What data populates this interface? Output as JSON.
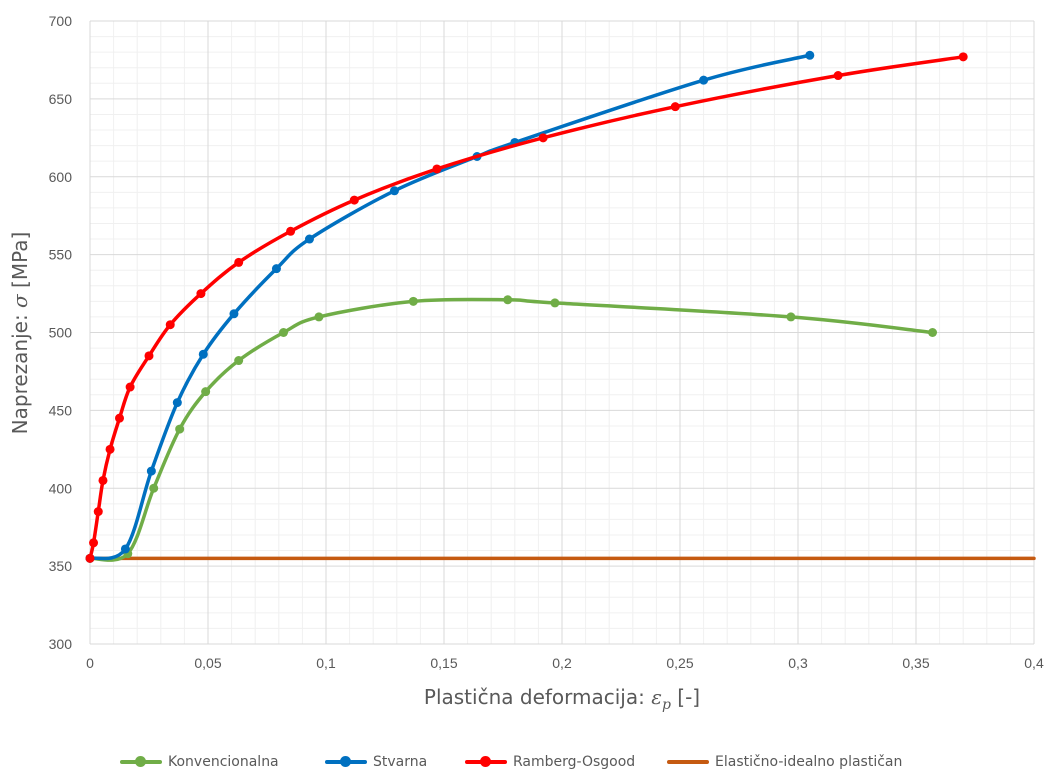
{
  "chart_data": {
    "type": "line",
    "title": "",
    "xlabel_prefix": "Plastična deformacija: ",
    "xlabel_symbol": "ε",
    "xlabel_sub": "p",
    "xlabel_suffix": " [-]",
    "ylabel_prefix": "Naprezanje: ",
    "ylabel_symbol": "σ",
    "ylabel_suffix": " [MPa]",
    "xlim": [
      0,
      0.4
    ],
    "ylim": [
      300,
      700
    ],
    "x_ticks": [
      {
        "v": 0,
        "label": "0"
      },
      {
        "v": 0.05,
        "label": "0,05"
      },
      {
        "v": 0.1,
        "label": "0,1"
      },
      {
        "v": 0.15,
        "label": "0,15"
      },
      {
        "v": 0.2,
        "label": "0,2"
      },
      {
        "v": 0.25,
        "label": "0,25"
      },
      {
        "v": 0.3,
        "label": "0,3"
      },
      {
        "v": 0.35,
        "label": "0,35"
      },
      {
        "v": 0.4,
        "label": "0,4"
      }
    ],
    "y_ticks": [
      {
        "v": 300,
        "label": "300"
      },
      {
        "v": 350,
        "label": "350"
      },
      {
        "v": 400,
        "label": "400"
      },
      {
        "v": 450,
        "label": "450"
      },
      {
        "v": 500,
        "label": "500"
      },
      {
        "v": 550,
        "label": "550"
      },
      {
        "v": 600,
        "label": "600"
      },
      {
        "v": 650,
        "label": "650"
      },
      {
        "v": 700,
        "label": "700"
      }
    ],
    "grid": true,
    "minor_grid": true,
    "legend_position": "bottom",
    "series": [
      {
        "name": "Konvencionalna",
        "color": "#70ad47",
        "markers": true,
        "points": [
          [
            0,
            355
          ],
          [
            0.016,
            358
          ],
          [
            0.027,
            400
          ],
          [
            0.038,
            438
          ],
          [
            0.049,
            462
          ],
          [
            0.063,
            482
          ],
          [
            0.082,
            500
          ],
          [
            0.097,
            510
          ],
          [
            0.137,
            520
          ],
          [
            0.177,
            521
          ],
          [
            0.197,
            519
          ],
          [
            0.297,
            510
          ],
          [
            0.357,
            500
          ]
        ]
      },
      {
        "name": "Stvarna",
        "color": "#0070c0",
        "markers": true,
        "points": [
          [
            0,
            355
          ],
          [
            0.015,
            361
          ],
          [
            0.026,
            411
          ],
          [
            0.037,
            455
          ],
          [
            0.048,
            486
          ],
          [
            0.061,
            512
          ],
          [
            0.079,
            541
          ],
          [
            0.093,
            560
          ],
          [
            0.129,
            591
          ],
          [
            0.164,
            613
          ],
          [
            0.18,
            622
          ],
          [
            0.26,
            662
          ],
          [
            0.305,
            678
          ]
        ]
      },
      {
        "name": "Ramberg-Osgood",
        "color": "#ff0000",
        "markers": true,
        "points": [
          [
            0,
            355
          ],
          [
            0.0015,
            365
          ],
          [
            0.0035,
            385
          ],
          [
            0.0055,
            405
          ],
          [
            0.0085,
            425
          ],
          [
            0.0125,
            445
          ],
          [
            0.017,
            465
          ],
          [
            0.025,
            485
          ],
          [
            0.034,
            505
          ],
          [
            0.047,
            525
          ],
          [
            0.063,
            545
          ],
          [
            0.085,
            565
          ],
          [
            0.112,
            585
          ],
          [
            0.147,
            605
          ],
          [
            0.192,
            625
          ],
          [
            0.248,
            645
          ],
          [
            0.317,
            665
          ],
          [
            0.37,
            677
          ]
        ]
      },
      {
        "name": "Elastično-idealno plastičan",
        "color": "#c55a11",
        "markers": false,
        "points": [
          [
            0,
            355
          ],
          [
            0.4,
            355
          ]
        ]
      }
    ]
  }
}
